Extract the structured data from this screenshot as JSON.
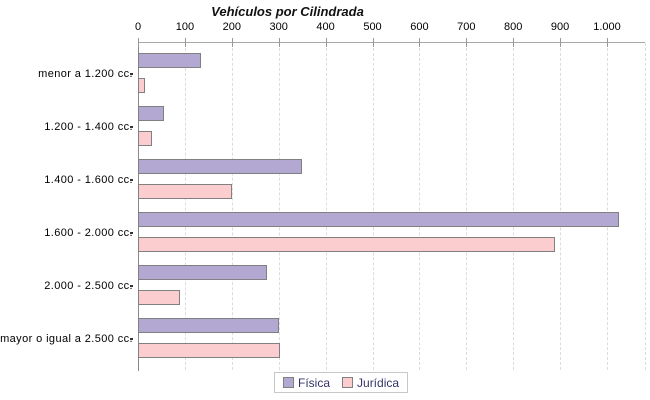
{
  "chart_data": {
    "type": "bar",
    "orientation": "horizontal",
    "title": "Vehículos por Cilindrada",
    "categories": [
      "menor a 1.200 cc.",
      "1.200 - 1.400 cc.",
      "1.400 - 1.600 cc.",
      "1.600 - 2.000 cc.",
      "2.000 - 2.500 cc.",
      "mayor o igual a 2.500 cc."
    ],
    "series": [
      {
        "name": "Física",
        "color": "#b2a8d2",
        "values": [
          135,
          55,
          350,
          1025,
          275,
          300
        ]
      },
      {
        "name": "Jurídica",
        "color": "#fccdcf",
        "values": [
          15,
          30,
          200,
          890,
          90,
          303
        ]
      }
    ],
    "x_axis": {
      "tick_labels": [
        "0",
        "100",
        "200",
        "300",
        "400",
        "500",
        "600",
        "700",
        "800",
        "900",
        "1.000"
      ],
      "tick_values": [
        0,
        100,
        200,
        300,
        400,
        500,
        600,
        700,
        800,
        900,
        1000
      ],
      "min": 0,
      "max": 1080,
      "position": "top"
    },
    "grid": "vertical-dashed",
    "legend": {
      "position": "bottom",
      "entries": [
        "Física",
        "Jurídica"
      ]
    },
    "colors": {
      "fisica_fill": "#b2a8d2",
      "juridica_fill": "#fccdcf",
      "bar_border": "#808080",
      "gridline": "#dcdcdc",
      "legend_text": "#333366",
      "title_text": "#111111"
    }
  }
}
